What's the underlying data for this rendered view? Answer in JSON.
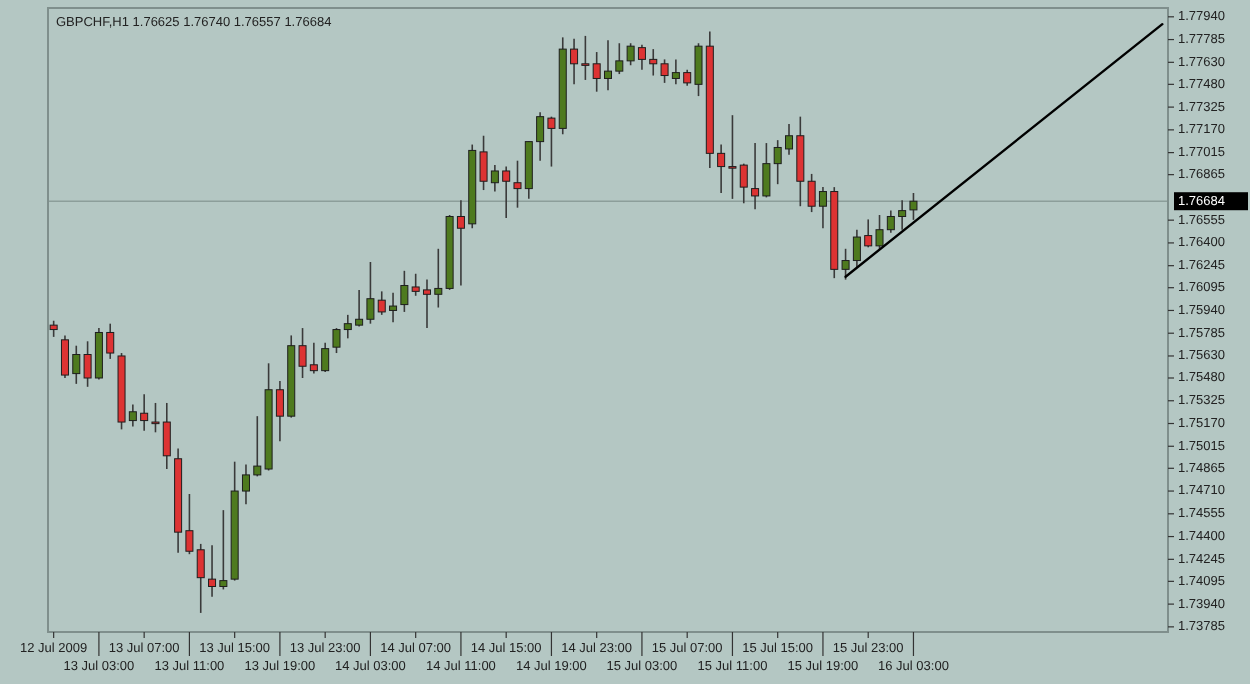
{
  "chart_data": {
    "type": "candlestick",
    "title": "GBPCHF,H1  1.76625 1.76740 1.76557 1.76684",
    "categories": [
      "12 Jul 2009",
      null,
      null,
      null,
      "13 Jul 03:00",
      null,
      null,
      null,
      "13 Jul 07:00",
      null,
      null,
      null,
      "13 Jul 11:00",
      null,
      null,
      null,
      "13 Jul 15:00",
      null,
      null,
      null,
      "13 Jul 19:00",
      null,
      null,
      null,
      "13 Jul 23:00",
      null,
      null,
      null,
      "14 Jul 03:00",
      null,
      null,
      null,
      "14 Jul 07:00",
      null,
      null,
      null,
      "14 Jul 11:00",
      null,
      null,
      null,
      "14 Jul 15:00",
      null,
      null,
      null,
      "14 Jul 19:00",
      null,
      null,
      null,
      "14 Jul 23:00",
      null,
      null,
      null,
      "15 Jul 03:00",
      null,
      null,
      null,
      "15 Jul 07:00",
      null,
      null,
      null,
      "15 Jul 11:00",
      null,
      null,
      null,
      "15 Jul 15:00",
      null,
      null,
      null,
      "15 Jul 19:00",
      null,
      null,
      null,
      "15 Jul 23:00",
      null,
      null,
      null,
      "16 Jul 03:00",
      null,
      null,
      null,
      null,
      null,
      null,
      null,
      null,
      null,
      null,
      null,
      null,
      null,
      null,
      null,
      null,
      null,
      null,
      null,
      null,
      null,
      null
    ],
    "ohlc": [
      [
        1.7584,
        1.7587,
        1.7576,
        1.7581
      ],
      [
        1.7574,
        1.7577,
        1.7548,
        1.755
      ],
      [
        1.7551,
        1.757,
        1.7544,
        1.7564
      ],
      [
        1.7564,
        1.7573,
        1.7542,
        1.7548
      ],
      [
        1.7548,
        1.7582,
        1.7547,
        1.7579
      ],
      [
        1.7579,
        1.7585,
        1.7561,
        1.7565
      ],
      [
        1.7563,
        1.7565,
        1.7513,
        1.7518
      ],
      [
        1.7519,
        1.753,
        1.7515,
        1.7525
      ],
      [
        1.7524,
        1.7537,
        1.7512,
        1.7519
      ],
      [
        1.7518,
        1.7531,
        1.7511,
        1.7518
      ],
      [
        1.7518,
        1.7531,
        1.7486,
        1.7495
      ],
      [
        1.7493,
        1.75,
        1.7429,
        1.7443
      ],
      [
        1.7444,
        1.7469,
        1.7428,
        1.743
      ],
      [
        1.7431,
        1.7435,
        1.7388,
        1.7412
      ],
      [
        1.7411,
        1.7434,
        1.7399,
        1.7406
      ],
      [
        1.7406,
        1.7458,
        1.7404,
        1.741
      ],
      [
        1.7411,
        1.7491,
        1.741,
        1.7471
      ],
      [
        1.7471,
        1.7489,
        1.7462,
        1.7482
      ],
      [
        1.7482,
        1.7522,
        1.7481,
        1.7488
      ],
      [
        1.7486,
        1.7558,
        1.7485,
        1.754
      ],
      [
        1.754,
        1.7546,
        1.7505,
        1.7522
      ],
      [
        1.7522,
        1.7577,
        1.7521,
        1.757
      ],
      [
        1.757,
        1.7582,
        1.7548,
        1.7556
      ],
      [
        1.7557,
        1.7572,
        1.7551,
        1.7553
      ],
      [
        1.7553,
        1.7572,
        1.7552,
        1.7568
      ],
      [
        1.7569,
        1.7582,
        1.7565,
        1.7581
      ],
      [
        1.7581,
        1.7591,
        1.7575,
        1.7585
      ],
      [
        1.7584,
        1.7608,
        1.7583,
        1.7588
      ],
      [
        1.7588,
        1.7627,
        1.7585,
        1.7602
      ],
      [
        1.7601,
        1.7607,
        1.7591,
        1.7593
      ],
      [
        1.7594,
        1.7606,
        1.7586,
        1.7597
      ],
      [
        1.7598,
        1.7621,
        1.7593,
        1.7611
      ],
      [
        1.761,
        1.7619,
        1.7604,
        1.7607
      ],
      [
        1.7608,
        1.7615,
        1.7582,
        1.7605
      ],
      [
        1.7605,
        1.7636,
        1.7596,
        1.7609
      ],
      [
        1.7609,
        1.7659,
        1.7608,
        1.7658
      ],
      [
        1.7658,
        1.7669,
        1.7611,
        1.765
      ],
      [
        1.7653,
        1.7707,
        1.765,
        1.7703
      ],
      [
        1.7702,
        1.7713,
        1.7676,
        1.7682
      ],
      [
        1.7681,
        1.7693,
        1.7675,
        1.7689
      ],
      [
        1.7689,
        1.7692,
        1.7657,
        1.7682
      ],
      [
        1.7681,
        1.7696,
        1.7664,
        1.7677
      ],
      [
        1.7677,
        1.7709,
        1.767,
        1.7709
      ],
      [
        1.7709,
        1.7729,
        1.7696,
        1.7726
      ],
      [
        1.7725,
        1.7726,
        1.7692,
        1.7718
      ],
      [
        1.7718,
        1.778,
        1.7714,
        1.7772
      ],
      [
        1.7772,
        1.7779,
        1.7748,
        1.7762
      ],
      [
        1.7762,
        1.7781,
        1.7751,
        1.7761
      ],
      [
        1.7762,
        1.777,
        1.7743,
        1.7752
      ],
      [
        1.7752,
        1.7778,
        1.7744,
        1.7757
      ],
      [
        1.7757,
        1.7776,
        1.7755,
        1.7764
      ],
      [
        1.7764,
        1.7776,
        1.7761,
        1.7774
      ],
      [
        1.7773,
        1.7775,
        1.7758,
        1.7765
      ],
      [
        1.7765,
        1.7772,
        1.7754,
        1.7762
      ],
      [
        1.7762,
        1.7765,
        1.7749,
        1.7754
      ],
      [
        1.7752,
        1.7765,
        1.7748,
        1.7756
      ],
      [
        1.7756,
        1.7758,
        1.7747,
        1.7749
      ],
      [
        1.7748,
        1.7776,
        1.774,
        1.7774
      ],
      [
        1.7774,
        1.7784,
        1.7691,
        1.7701
      ],
      [
        1.7701,
        1.7707,
        1.7674,
        1.7692
      ],
      [
        1.7692,
        1.7727,
        1.767,
        1.7692
      ],
      [
        1.7693,
        1.7694,
        1.7667,
        1.7678
      ],
      [
        1.7677,
        1.7708,
        1.7663,
        1.7672
      ],
      [
        1.7672,
        1.7708,
        1.7671,
        1.7694
      ],
      [
        1.7694,
        1.771,
        1.768,
        1.7705
      ],
      [
        1.7704,
        1.7721,
        1.77,
        1.7713
      ],
      [
        1.7713,
        1.7726,
        1.7665,
        1.7682
      ],
      [
        1.7682,
        1.7687,
        1.7661,
        1.7665
      ],
      [
        1.7665,
        1.7678,
        1.765,
        1.7675
      ],
      [
        1.7675,
        1.7678,
        1.7616,
        1.7622
      ],
      [
        1.7622,
        1.7636,
        1.7615,
        1.7628
      ],
      [
        1.7628,
        1.7649,
        1.7623,
        1.7644
      ],
      [
        1.7645,
        1.7656,
        1.7637,
        1.7638
      ],
      [
        1.7638,
        1.7659,
        1.7636,
        1.7649
      ],
      [
        1.7649,
        1.7662,
        1.7647,
        1.7658
      ],
      [
        1.7658,
        1.7669,
        1.7649,
        1.7662
      ],
      [
        1.76625,
        1.7674,
        1.76557,
        1.76684
      ],
      null,
      null,
      null,
      null,
      null,
      null,
      null,
      null,
      null,
      null,
      null,
      null,
      null,
      null,
      null,
      null,
      null,
      null,
      null,
      null,
      null,
      null
    ],
    "colors": [
      "#dd3333",
      "#dd3333",
      "#4e7a1e",
      "#dd3333",
      "#4e7a1e",
      "#dd3333",
      "#dd3333",
      "#4e7a1e",
      "#dd3333",
      "#dd3333",
      "#dd3333",
      "#dd3333",
      "#dd3333",
      "#dd3333",
      "#dd3333",
      "#4e7a1e",
      "#4e7a1e",
      "#4e7a1e",
      "#4e7a1e",
      "#4e7a1e",
      "#dd3333",
      "#4e7a1e",
      "#dd3333",
      "#dd3333",
      "#4e7a1e",
      "#4e7a1e",
      "#4e7a1e",
      "#4e7a1e",
      "#4e7a1e",
      "#dd3333",
      "#4e7a1e",
      "#4e7a1e",
      "#dd3333",
      "#dd3333",
      "#4e7a1e",
      "#4e7a1e",
      "#dd3333",
      "#4e7a1e",
      "#dd3333",
      "#4e7a1e",
      "#dd3333",
      "#dd3333",
      "#4e7a1e",
      "#4e7a1e",
      "#dd3333",
      "#4e7a1e",
      "#dd3333",
      "#dd3333",
      "#dd3333",
      "#4e7a1e",
      "#4e7a1e",
      "#4e7a1e",
      "#dd3333",
      "#dd3333",
      "#dd3333",
      "#4e7a1e",
      "#dd3333",
      "#4e7a1e",
      "#dd3333",
      "#dd3333",
      "#dd3333",
      "#dd3333",
      "#dd3333",
      "#4e7a1e",
      "#4e7a1e",
      "#4e7a1e",
      "#dd3333",
      "#dd3333",
      "#4e7a1e",
      "#dd3333",
      "#4e7a1e",
      "#4e7a1e",
      "#dd3333",
      "#4e7a1e",
      "#4e7a1e",
      "#4e7a1e",
      "#4e7a1e",
      null,
      null,
      null,
      null,
      null,
      null,
      null,
      null,
      null,
      null,
      null,
      null,
      null,
      null,
      null,
      null,
      null,
      null,
      null,
      null,
      null,
      null
    ],
    "series": [
      {
        "type": "line",
        "color": "#000000",
        "values": [
          null,
          null,
          null,
          null,
          null,
          null,
          null,
          null,
          null,
          null,
          null,
          null,
          null,
          null,
          null,
          null,
          null,
          null,
          null,
          null,
          null,
          null,
          null,
          null,
          null,
          null,
          null,
          null,
          null,
          null,
          null,
          null,
          null,
          null,
          null,
          null,
          null,
          null,
          null,
          null,
          null,
          null,
          null,
          null,
          null,
          null,
          null,
          null,
          null,
          null,
          null,
          null,
          null,
          null,
          null,
          null,
          null,
          null,
          null,
          null,
          null,
          null,
          null,
          null,
          null,
          null,
          null,
          null,
          null,
          null,
          1.7617,
          null,
          null,
          null,
          null,
          null,
          null,
          null,
          null,
          null,
          null,
          null,
          null,
          null,
          null,
          null,
          null,
          null,
          null,
          null,
          null,
          null,
          null,
          null,
          null,
          null,
          null,
          null,
          1.7789
        ]
      }
    ],
    "ylim": [
      1.7375,
      1.78
    ],
    "yticks": [
      {
        "value": 1.7794,
        "label": "1.77940"
      },
      1.77785,
      {
        "value": 1.7763,
        "label": "1.77630"
      },
      {
        "value": 1.7748,
        "label": "1.77480"
      },
      1.77325,
      {
        "value": 1.7717,
        "label": "1.77170"
      },
      1.77015,
      1.76865,
      1.76555,
      {
        "value": 1.764,
        "label": "1.76400"
      },
      1.76245,
      1.76095,
      {
        "value": 1.7594,
        "label": "1.75940"
      },
      1.75785,
      {
        "value": 1.7563,
        "label": "1.75630"
      },
      {
        "value": 1.7548,
        "label": "1.75480"
      },
      1.75325,
      {
        "value": 1.7517,
        "label": "1.75170"
      },
      1.75015,
      1.74865,
      {
        "value": 1.7471,
        "label": "1.74710"
      },
      1.74555,
      {
        "value": 1.744,
        "label": "1.74400"
      },
      1.74245,
      1.74095,
      {
        "value": 1.7394,
        "label": "1.73940"
      },
      1.73785
    ],
    "ref_lines": [
      {
        "axis": "y",
        "value": 1.76684,
        "label": "1.76684",
        "color": "#8c9e9a"
      }
    ]
  }
}
